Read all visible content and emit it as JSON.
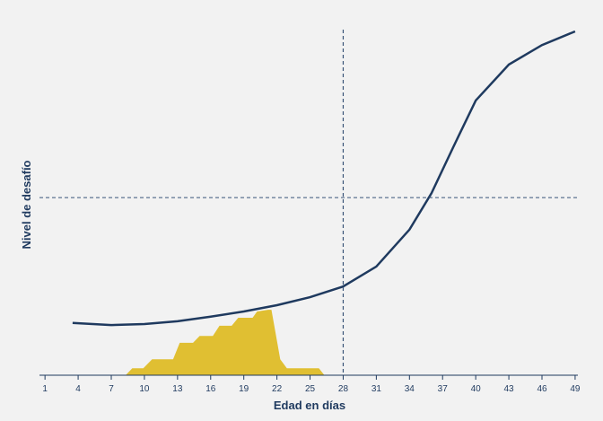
{
  "chart_data": {
    "type": "line",
    "xlabel": "Edad en días",
    "ylabel": "Nivel de desafío",
    "xlim": [
      0.5,
      49.25
    ],
    "ylim": [
      0,
      100
    ],
    "xticks": [
      1,
      4,
      7,
      10,
      13,
      16,
      19,
      22,
      25,
      28,
      31,
      34,
      37,
      40,
      43,
      46,
      49
    ],
    "hlines": [
      51
    ],
    "vlines": [
      28
    ],
    "series": [
      {
        "kind": "area",
        "color": "#e0bf32",
        "x": [
          8.3,
          8.9,
          9.9,
          10.7,
          12.6,
          13.2,
          14.4,
          15.0,
          16.2,
          16.8,
          17.9,
          18.5,
          19.8,
          20.2,
          21.2,
          21.5,
          22.3,
          22.9,
          25.8,
          26.3
        ],
        "values": [
          0,
          2,
          2,
          4.6,
          4.6,
          9.3,
          9.3,
          11.3,
          11.3,
          14.2,
          14.2,
          16.5,
          16.5,
          18.3,
          18.8,
          18.8,
          4.6,
          2,
          2,
          0
        ]
      },
      {
        "kind": "line",
        "color": "#1f3a5f",
        "x": [
          3.5,
          7,
          10,
          13,
          16,
          19,
          22,
          25,
          28,
          31,
          34,
          36,
          38,
          40,
          43,
          46,
          49
        ],
        "values": [
          15,
          14.4,
          14.7,
          15.5,
          16.8,
          18.3,
          20.1,
          22.4,
          25.5,
          31.2,
          41.8,
          52.3,
          65.7,
          78.9,
          89.2,
          94.8,
          98.7
        ]
      }
    ]
  }
}
